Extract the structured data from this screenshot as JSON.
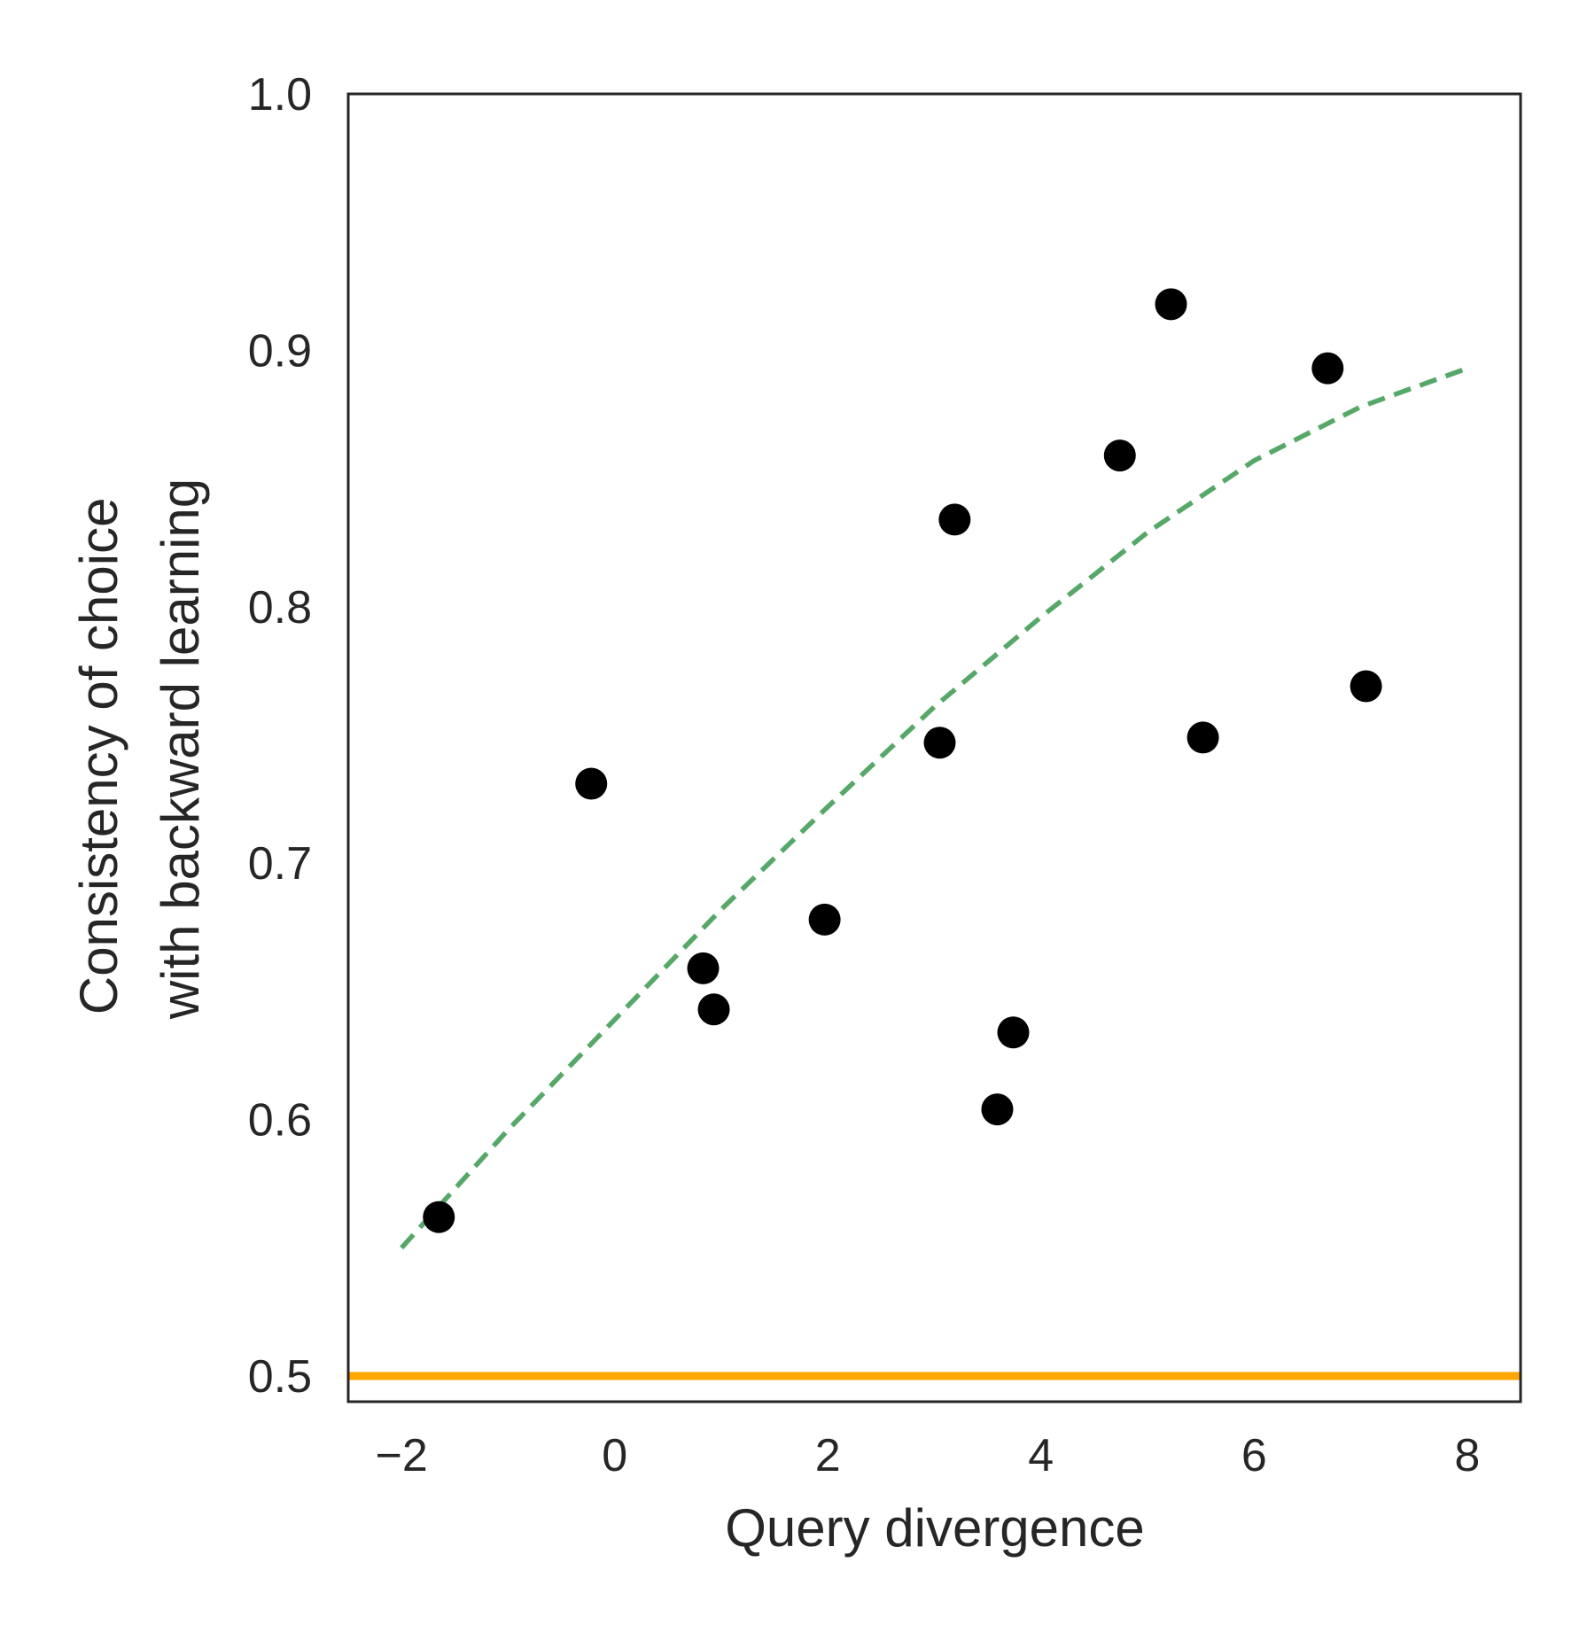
{
  "chart_data": {
    "type": "scatter",
    "xlabel": "Query divergence",
    "ylabel_lines": [
      "Consistency of choice",
      "with backward learning"
    ],
    "xlim": [
      -2.5,
      8.5
    ],
    "ylim": [
      0.49,
      1.0
    ],
    "x_ticks": [
      -2,
      0,
      2,
      4,
      6,
      8
    ],
    "x_tick_labels": [
      "−2",
      "0",
      "2",
      "4",
      "6",
      "8"
    ],
    "y_ticks": [
      0.5,
      0.6,
      0.7,
      0.8,
      0.9,
      1.0
    ],
    "y_tick_labels": [
      "0.5",
      "0.6",
      "0.7",
      "0.8",
      "0.9",
      "1.0"
    ],
    "grid": false,
    "points": {
      "color": "#000000",
      "x": [
        -1.65,
        -0.22,
        0.83,
        0.93,
        1.97,
        3.05,
        3.19,
        3.59,
        3.74,
        4.74,
        5.22,
        5.52,
        6.69,
        7.05
      ],
      "y": [
        0.562,
        0.731,
        0.659,
        0.643,
        0.678,
        0.747,
        0.834,
        0.604,
        0.634,
        0.859,
        0.918,
        0.749,
        0.893,
        0.769
      ]
    },
    "fit_curve": {
      "style": "dashed",
      "color": "#55a868",
      "x": [
        -2,
        -1,
        0,
        1,
        2,
        3,
        4,
        5,
        6,
        7,
        8
      ],
      "y": [
        0.55,
        0.596,
        0.639,
        0.682,
        0.722,
        0.761,
        0.796,
        0.829,
        0.857,
        0.878,
        0.893
      ]
    },
    "reference_line": {
      "y": 0.5,
      "color": "#ffa500"
    }
  }
}
